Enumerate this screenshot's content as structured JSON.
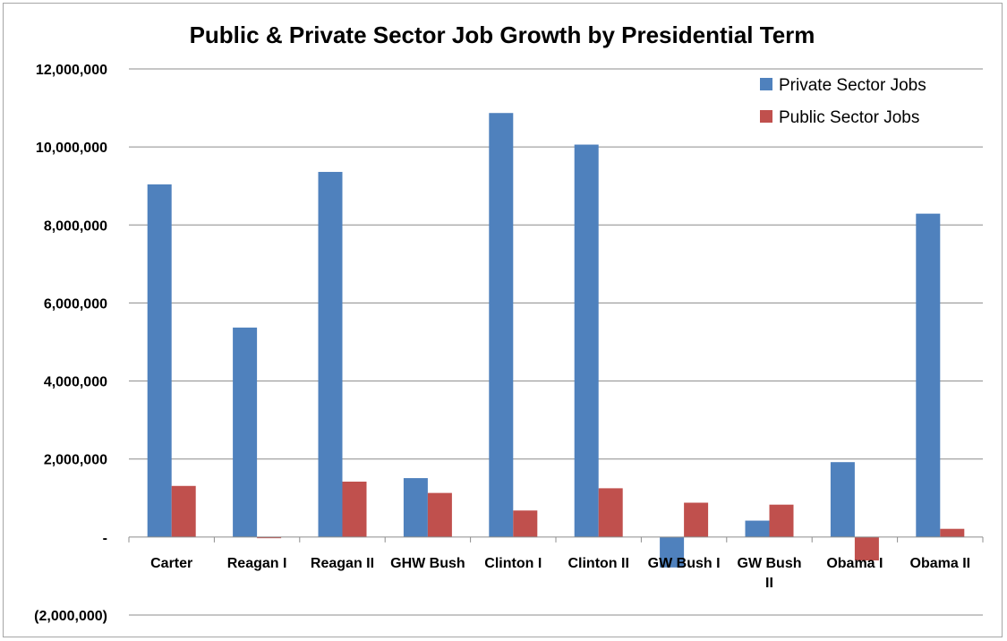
{
  "chart_data": {
    "type": "bar",
    "title": "Public & Private Sector Job Growth by Presidential Term",
    "xlabel": "",
    "ylabel": "",
    "categories": [
      [
        "Carter"
      ],
      [
        "Reagan I"
      ],
      [
        "Reagan II"
      ],
      [
        "GHW Bush"
      ],
      [
        "Clinton I"
      ],
      [
        "Clinton II"
      ],
      [
        "GW Bush I"
      ],
      [
        "GW Bush",
        "II"
      ],
      [
        "Obama I"
      ],
      [
        "Obama II"
      ]
    ],
    "series": [
      {
        "name": "Private Sector Jobs",
        "color": "#4f81bd",
        "values": [
          9040000,
          5370000,
          9360000,
          1510000,
          10870000,
          10060000,
          -780000,
          420000,
          1920000,
          8290000
        ]
      },
      {
        "name": "Public Sector Jobs",
        "color": "#c0504d",
        "values": [
          1310000,
          -30000,
          1420000,
          1130000,
          680000,
          1250000,
          880000,
          830000,
          -600000,
          210000
        ]
      }
    ],
    "ylim": [
      -2000000,
      12000000
    ],
    "yticks": [
      12000000,
      10000000,
      8000000,
      6000000,
      4000000,
      2000000,
      0,
      -2000000
    ],
    "ytick_labels": [
      "12,000,000",
      "10,000,000",
      "8,000,000",
      "6,000,000",
      "4,000,000",
      "2,000,000",
      "-",
      "(2,000,000)"
    ],
    "grid": true,
    "legend": "top-right"
  }
}
